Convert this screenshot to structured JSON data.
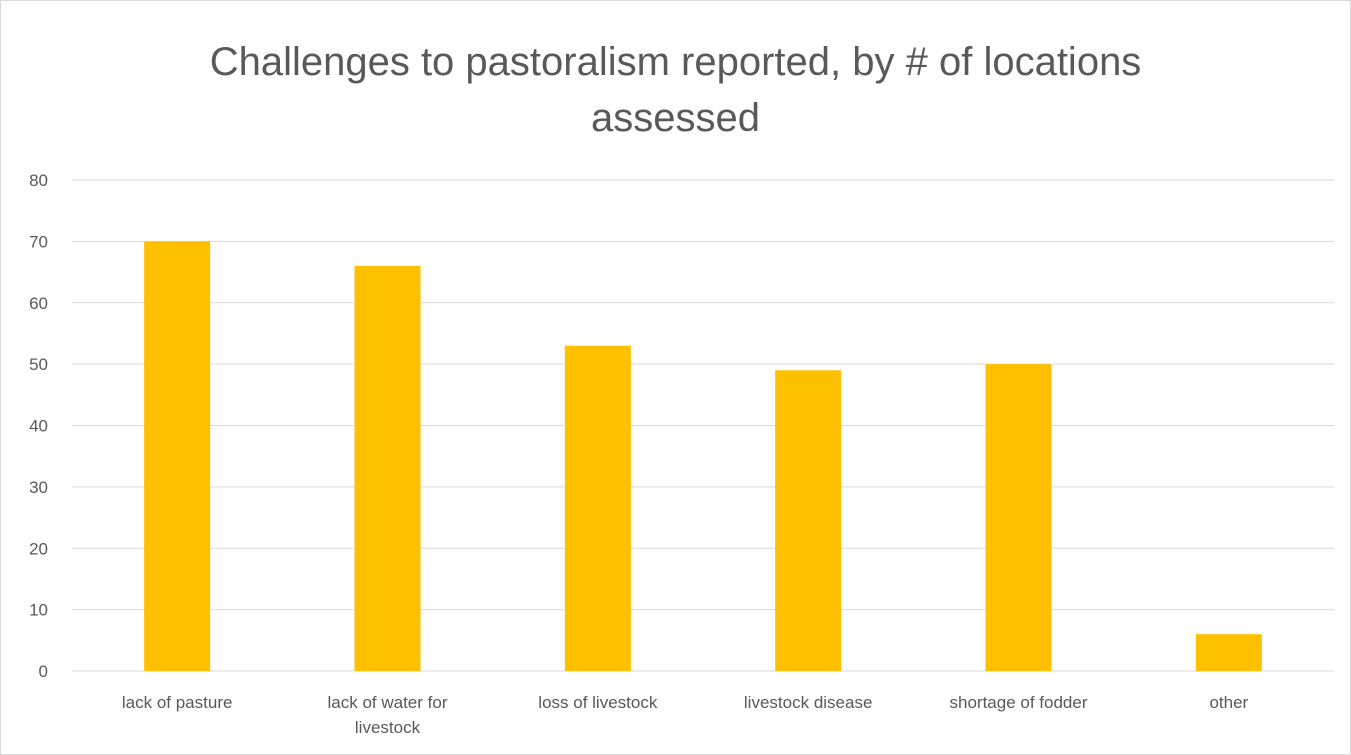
{
  "chart_data": {
    "type": "bar",
    "title_lines": [
      "Challenges to pastoralism reported, by # of locations",
      "assessed"
    ],
    "categories": [
      [
        "lack of pasture"
      ],
      [
        "lack of water for",
        "livestock"
      ],
      [
        "loss of livestock"
      ],
      [
        "livestock disease"
      ],
      [
        "shortage of fodder"
      ],
      [
        "other"
      ]
    ],
    "values": [
      70,
      66,
      53,
      49,
      50,
      6
    ],
    "ylim": [
      0,
      80
    ],
    "yticks": [
      "0",
      "10",
      "20",
      "30",
      "40",
      "50",
      "60",
      "70",
      "80"
    ],
    "bar_color": "#FFC000",
    "gridline_color": "#d9d9d9",
    "grid": true,
    "legend": "none"
  }
}
